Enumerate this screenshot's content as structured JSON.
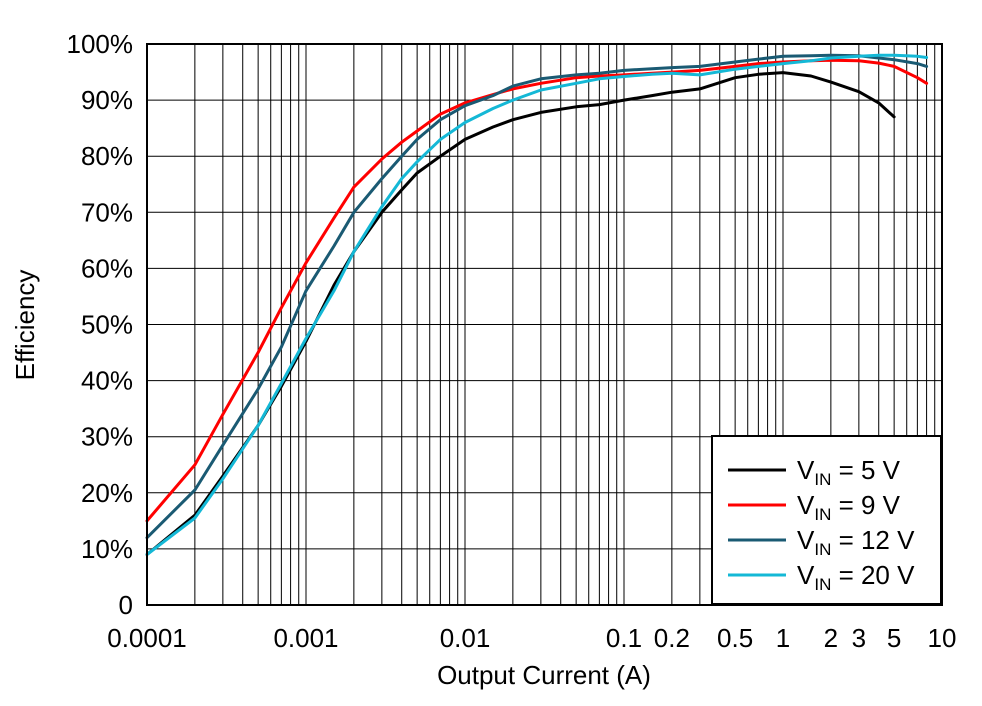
{
  "chart_data": {
    "type": "line",
    "xlabel": "Output Current (A)",
    "ylabel": "Efficiency",
    "x_scale": "log",
    "xlim": [
      0.0001,
      10
    ],
    "ylim": [
      0,
      100
    ],
    "grid": true,
    "legend_placement": "bottom-right",
    "x_tick_labels": [
      {
        "value": 0.0001,
        "label": "0.0001"
      },
      {
        "value": 0.001,
        "label": "0.001"
      },
      {
        "value": 0.01,
        "label": "0.01"
      },
      {
        "value": 0.1,
        "label": "0.1"
      },
      {
        "value": 0.2,
        "label": "0.2"
      },
      {
        "value": 0.5,
        "label": "0.5"
      },
      {
        "value": 1,
        "label": "1"
      },
      {
        "value": 2,
        "label": "2"
      },
      {
        "value": 3,
        "label": "3"
      },
      {
        "value": 5,
        "label": "5"
      },
      {
        "value": 10,
        "label": "10"
      }
    ],
    "y_tick_labels": [
      {
        "value": 0,
        "label": "0"
      },
      {
        "value": 10,
        "label": "10%"
      },
      {
        "value": 20,
        "label": "20%"
      },
      {
        "value": 30,
        "label": "30%"
      },
      {
        "value": 40,
        "label": "40%"
      },
      {
        "value": 50,
        "label": "50%"
      },
      {
        "value": 60,
        "label": "60%"
      },
      {
        "value": 70,
        "label": "70%"
      },
      {
        "value": 80,
        "label": "80%"
      },
      {
        "value": 90,
        "label": "90%"
      },
      {
        "value": 100,
        "label": "100%"
      }
    ],
    "series": [
      {
        "name_main": "V",
        "name_sub": "IN",
        "name_rest": " = 5 V",
        "color": "#000000",
        "x": [
          0.0001,
          0.0002,
          0.0003,
          0.0005,
          0.0007,
          0.001,
          0.0015,
          0.002,
          0.003,
          0.004,
          0.005,
          0.007,
          0.01,
          0.015,
          0.02,
          0.03,
          0.05,
          0.07,
          0.1,
          0.15,
          0.2,
          0.3,
          0.5,
          0.7,
          1,
          1.5,
          2,
          3,
          4,
          5
        ],
        "y": [
          9,
          16,
          23,
          32,
          39,
          47,
          57,
          63,
          70,
          74,
          77,
          80,
          83,
          85.2,
          86.5,
          87.8,
          88.8,
          89.2,
          90,
          90.8,
          91.4,
          92,
          94,
          94.6,
          94.9,
          94.3,
          93.2,
          91.5,
          89.5,
          87
        ]
      },
      {
        "name_main": "V",
        "name_sub": "IN",
        "name_rest": " = 9 V",
        "color": "#ff0000",
        "x": [
          0.0001,
          0.0002,
          0.0003,
          0.0005,
          0.0007,
          0.001,
          0.0015,
          0.002,
          0.003,
          0.004,
          0.005,
          0.007,
          0.01,
          0.015,
          0.02,
          0.03,
          0.05,
          0.07,
          0.1,
          0.15,
          0.2,
          0.3,
          0.5,
          0.7,
          1,
          1.5,
          2,
          3,
          4,
          5,
          7,
          8
        ],
        "y": [
          15,
          25,
          34,
          45,
          53,
          61,
          69,
          74.5,
          79.5,
          82.5,
          84.5,
          87.5,
          89.5,
          91,
          92,
          93,
          94,
          94.3,
          94.5,
          94.8,
          95,
          95.3,
          96,
          96.5,
          96.8,
          97,
          97.1,
          97,
          96.6,
          96,
          94,
          93
        ]
      },
      {
        "name_main": "V",
        "name_sub": "IN",
        "name_rest": " = 12 V",
        "color": "#1a5a73",
        "x": [
          0.0001,
          0.0002,
          0.0003,
          0.0005,
          0.0007,
          0.001,
          0.0015,
          0.002,
          0.003,
          0.004,
          0.005,
          0.007,
          0.01,
          0.015,
          0.02,
          0.03,
          0.05,
          0.07,
          0.1,
          0.15,
          0.2,
          0.3,
          0.5,
          0.7,
          1,
          1.5,
          2,
          3,
          4,
          5,
          7,
          8
        ],
        "y": [
          12,
          20.5,
          28.5,
          38.5,
          46,
          56,
          64,
          70,
          76,
          80,
          83,
          86.5,
          89,
          90.8,
          92.5,
          93.8,
          94.5,
          94.8,
          95.3,
          95.6,
          95.8,
          96,
          96.8,
          97.3,
          97.8,
          97.9,
          98,
          97.9,
          97.5,
          97.2,
          96.5,
          96
        ]
      },
      {
        "name_main": "V",
        "name_sub": "IN",
        "name_rest": " = 20 V",
        "color": "#14b8d6",
        "x": [
          0.0001,
          0.0002,
          0.0003,
          0.0005,
          0.0007,
          0.001,
          0.0015,
          0.002,
          0.003,
          0.004,
          0.005,
          0.007,
          0.01,
          0.015,
          0.02,
          0.03,
          0.05,
          0.07,
          0.1,
          0.15,
          0.2,
          0.3,
          0.5,
          0.7,
          1,
          1.5,
          2,
          3,
          4,
          5,
          7,
          8
        ],
        "y": [
          9,
          15.5,
          22.5,
          32,
          39.5,
          47.5,
          56,
          63,
          71,
          76,
          79,
          83,
          86,
          88.5,
          90,
          91.8,
          93,
          93.8,
          94.2,
          94.6,
          94.8,
          94.5,
          95.5,
          96,
          96.5,
          97,
          97.5,
          97.8,
          98,
          98,
          97.8,
          97.6
        ]
      }
    ]
  }
}
